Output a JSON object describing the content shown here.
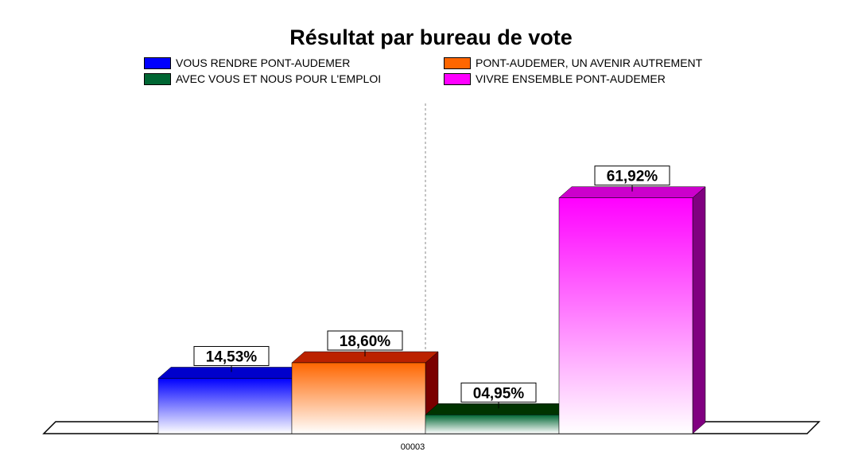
{
  "chart_data": {
    "type": "bar",
    "title": "Résultat par bureau de vote",
    "categories": [
      "00003"
    ],
    "series": [
      {
        "name": "VOUS RENDRE PONT-AUDEMER",
        "values": [
          14.53
        ],
        "label": "14,53%",
        "color": "#0000ff",
        "top_color": "#0000cc",
        "side_color": "#000080"
      },
      {
        "name": "PONT-AUDEMER, UN AVENIR AUTREMENT",
        "values": [
          18.6
        ],
        "label": "18,60%",
        "color": "#ff6600",
        "top_color": "#bb2200",
        "side_color": "#7a0000"
      },
      {
        "name": "AVEC VOUS ET NOUS POUR L'EMPLOI",
        "values": [
          4.95
        ],
        "label": "04,95%",
        "color": "#006633",
        "top_color": "#003300",
        "side_color": "#002200"
      },
      {
        "name": "VIVRE ENSEMBLE PONT-AUDEMER",
        "values": [
          61.92
        ],
        "label": "61,92%",
        "color": "#ff00ff",
        "top_color": "#cc00cc",
        "side_color": "#800080"
      }
    ],
    "ylim": [
      0,
      70
    ],
    "grid": false,
    "legend_position": "top",
    "style": "3d-gradient"
  },
  "legend": {
    "items": [
      {
        "label": "VOUS RENDRE PONT-AUDEMER",
        "color": "#0000ff"
      },
      {
        "label": "AVEC VOUS ET NOUS POUR L'EMPLOI",
        "color": "#006633"
      },
      {
        "label": "PONT-AUDEMER, UN AVENIR AUTREMENT",
        "color": "#ff6600"
      },
      {
        "label": "VIVRE ENSEMBLE PONT-AUDEMER",
        "color": "#ff00ff"
      }
    ]
  }
}
